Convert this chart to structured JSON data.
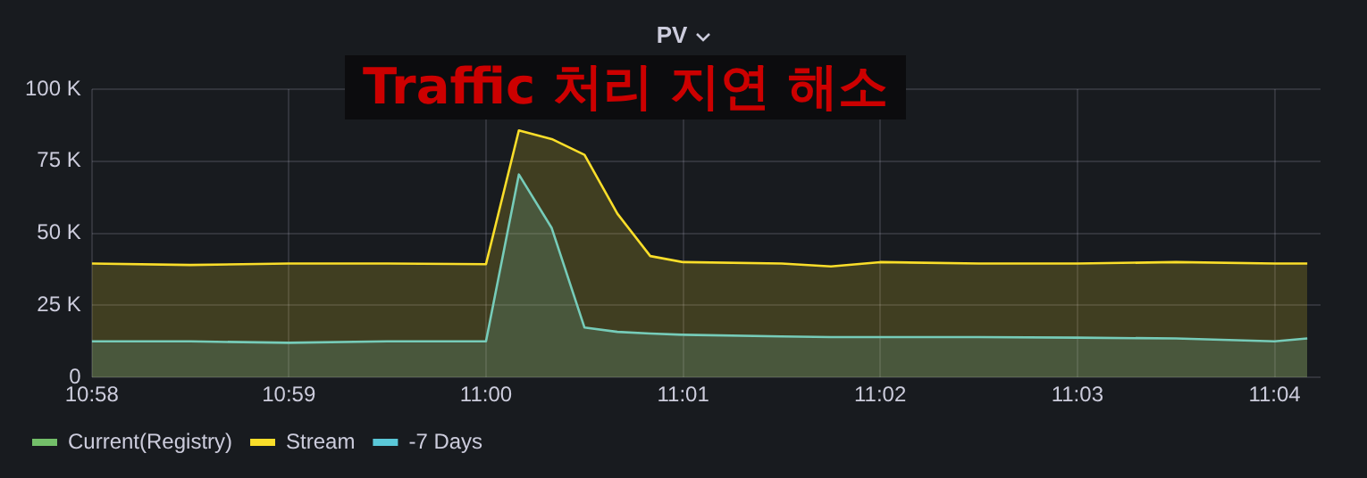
{
  "chart_data": {
    "type": "area",
    "title": "PV",
    "annotations": [
      "Traffic 처리 지연 해소"
    ],
    "x": [
      10.96667,
      10.975,
      10.98333,
      10.99167,
      11.0,
      11.00278,
      11.00556,
      11.00833,
      11.01111,
      11.01389,
      11.01667,
      11.025,
      11.02917,
      11.03333,
      11.04167,
      11.05,
      11.05833,
      11.06667,
      11.06944
    ],
    "series": [
      {
        "name": "Current(Registry)",
        "color": "#73bf69",
        "values": [
          null,
          null,
          null,
          null,
          null,
          null,
          null,
          null,
          null,
          null,
          null,
          null,
          null,
          null,
          null,
          null,
          null,
          null,
          null
        ]
      },
      {
        "name": "Stream",
        "color": "#fade2a",
        "values": [
          39500,
          39000,
          39500,
          39500,
          39300,
          85700,
          82700,
          77200,
          56800,
          42100,
          40000,
          39500,
          38500,
          40000,
          39500,
          39500,
          40000,
          39500,
          39500
        ]
      },
      {
        "name": "-7 Days",
        "color": "#5ac8d8",
        "values": [
          12500,
          12500,
          12000,
          12500,
          12500,
          70400,
          51800,
          17300,
          15800,
          15200,
          14800,
          14200,
          14000,
          14000,
          14000,
          13800,
          13500,
          12500,
          13500
        ]
      }
    ],
    "xlim": [
      10.96667,
      11.07056
    ],
    "xticks": [
      {
        "value": 10.96667,
        "label": "10:58"
      },
      {
        "value": 10.98333,
        "label": "10:59"
      },
      {
        "value": 11.0,
        "label": "11:00"
      },
      {
        "value": 11.01667,
        "label": "11:01"
      },
      {
        "value": 11.03333,
        "label": "11:02"
      },
      {
        "value": 11.05,
        "label": "11:03"
      },
      {
        "value": 11.06667,
        "label": "11:04"
      }
    ],
    "ylim": [
      0,
      100000
    ],
    "yticks": [
      {
        "value": 0,
        "label": "0"
      },
      {
        "value": 25000,
        "label": "25 K"
      },
      {
        "value": 50000,
        "label": "50 K"
      },
      {
        "value": 75000,
        "label": "75 K"
      },
      {
        "value": 100000,
        "label": "100 K"
      }
    ],
    "grid": true,
    "legend": "bottom left"
  }
}
